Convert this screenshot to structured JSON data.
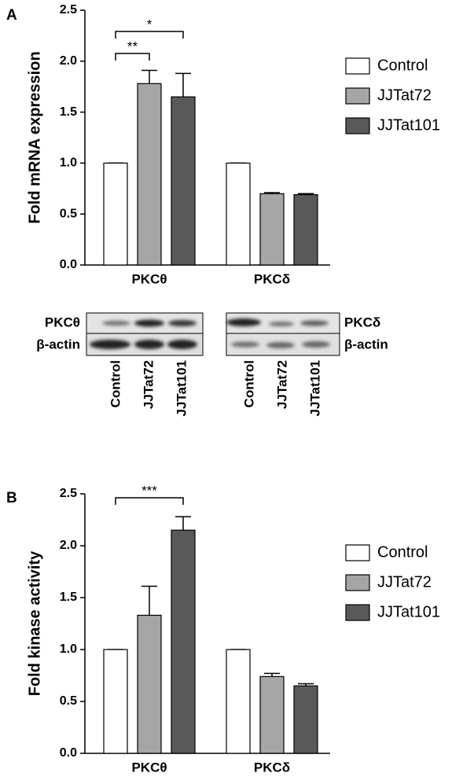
{
  "chart_data": [
    {
      "type": "bar",
      "panel": "A",
      "ylabel": "Fold mRNA expression",
      "categories": [
        "PKCθ",
        "PKCδ"
      ],
      "series": [
        {
          "name": "Control",
          "color": "#ffffff",
          "values": [
            1.0,
            1.0
          ],
          "errors": [
            0,
            0
          ]
        },
        {
          "name": "JJTat72",
          "color": "#a6a6a6",
          "values": [
            1.78,
            0.7
          ],
          "errors": [
            0.13,
            0.01
          ]
        },
        {
          "name": "JJTat101",
          "color": "#595959",
          "values": [
            1.65,
            0.69
          ],
          "errors": [
            0.23,
            0.01
          ]
        }
      ],
      "ylim": [
        0,
        2.5
      ],
      "yticks": [
        {
          "value": 0,
          "label": "0.0"
        },
        0.5,
        {
          "value": 1,
          "label": "1.0"
        },
        1.5,
        {
          "value": 2,
          "label": "2.0"
        },
        2.5
      ],
      "annotations": [
        "**",
        "*"
      ]
    },
    {
      "type": "bar",
      "panel": "B",
      "ylabel": "Fold kinase activity",
      "categories": [
        "PKCθ",
        "PKCδ"
      ],
      "series": [
        {
          "name": "Control",
          "color": "#ffffff",
          "values": [
            1.0,
            1.0
          ],
          "errors": [
            0,
            0
          ]
        },
        {
          "name": "JJTat72",
          "color": "#a6a6a6",
          "values": [
            1.33,
            0.74
          ],
          "errors": [
            0.28,
            0.03
          ]
        },
        {
          "name": "JJTat101",
          "color": "#595959",
          "values": [
            2.15,
            0.65
          ],
          "errors": [
            0.13,
            0.02
          ]
        }
      ],
      "ylim": [
        0,
        2.5
      ],
      "yticks": [
        {
          "value": 0,
          "label": "0.0"
        },
        0.5,
        {
          "value": 1,
          "label": "1.0"
        },
        1.5,
        {
          "value": 2,
          "label": "2.0"
        },
        2.5
      ],
      "annotations": [
        "***"
      ]
    }
  ],
  "blot": {
    "left_rows": [
      "PKCθ",
      "β-actin"
    ],
    "right_rows": [
      "PKCδ",
      "β-actin"
    ],
    "lanes": [
      "Control",
      "JJTat72",
      "JJTat101"
    ]
  }
}
